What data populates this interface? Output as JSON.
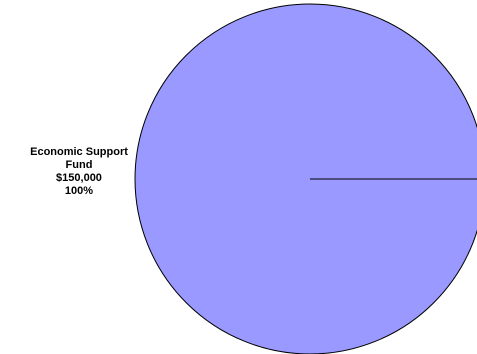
{
  "chart_data": {
    "type": "pie",
    "title": "",
    "slices": [
      {
        "name_line1": "Economic Support",
        "name_line2": "Fund",
        "value_label": "$150,000",
        "percent_label": "100%",
        "value": 150000,
        "percent": 100,
        "color": "#9999ff"
      }
    ],
    "legend": "none"
  }
}
